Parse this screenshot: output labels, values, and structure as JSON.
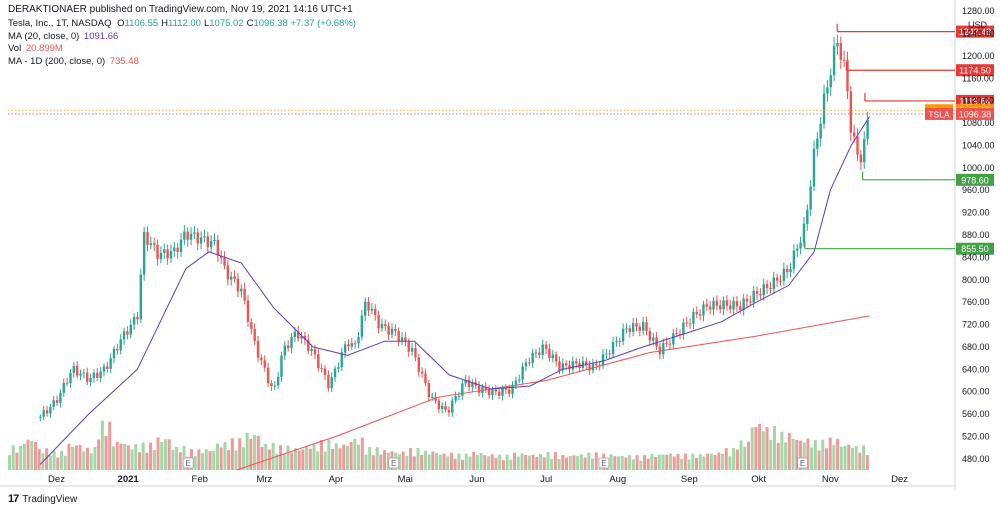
{
  "header": {
    "publish_line": "DERAKTIONAER published on TradingView.com, Nov 19, 2021 14:16 UTC+1",
    "symbol_title": "Tesla, Inc., 1T, NASDAQ",
    "ohlc": [
      {
        "label": "O",
        "value": "1106.55"
      },
      {
        "label": "H",
        "value": "1112.00"
      },
      {
        "label": "L",
        "value": "1075.02"
      },
      {
        "label": "C",
        "value": "1096.38"
      }
    ],
    "change": "+7.37 (+0.68%)",
    "ma20": {
      "label": "MA (20, close, 0)",
      "value": "1091.66"
    },
    "vol": {
      "label": "Vol",
      "value": "20.899M"
    },
    "ma200": {
      "label": "MA - 1D (200, close, 0)",
      "value": "735.48"
    }
  },
  "footer": {
    "brand": "TradingView",
    "logo": "17"
  },
  "colors": {
    "up": "#26a69a",
    "down": "#ef5350",
    "ma20": "#673ab7",
    "ma200": "#ef5350",
    "vol_up": "#a5d6a7",
    "vol_down": "#ef9a9a",
    "level_red": "#e53935",
    "level_green": "#43a047",
    "pre": "#ff9800"
  },
  "chart_data": {
    "type": "candlestick",
    "currency": "USD",
    "ylim": [
      460,
      1300
    ],
    "y_ticks": [
      1280,
      1240,
      1200,
      1160,
      1120,
      1080,
      1040,
      1000,
      960,
      920,
      880,
      840,
      800,
      760,
      720,
      680,
      640,
      600,
      560,
      520,
      480
    ],
    "x_labels": [
      "Dez",
      "2021",
      "Feb",
      "Mrz",
      "Apr",
      "Mai",
      "Jun",
      "Jul",
      "Aug",
      "Sep",
      "Okt",
      "Nov",
      "Dez"
    ],
    "price_series": [
      [
        "2020-11-24",
        555
      ],
      [
        "2020-12-01",
        584
      ],
      [
        "2020-12-08",
        641
      ],
      [
        "2020-12-15",
        622
      ],
      [
        "2020-12-22",
        640
      ],
      [
        "2020-12-29",
        694
      ],
      [
        "2021-01-05",
        735
      ],
      [
        "2021-01-08",
        880
      ],
      [
        "2021-01-14",
        845
      ],
      [
        "2021-01-21",
        850
      ],
      [
        "2021-01-26",
        883
      ],
      [
        "2021-02-02",
        872
      ],
      [
        "2021-02-08",
        863
      ],
      [
        "2021-02-12",
        816
      ],
      [
        "2021-02-19",
        781
      ],
      [
        "2021-02-25",
        682
      ],
      [
        "2021-03-05",
        597
      ],
      [
        "2021-03-09",
        673
      ],
      [
        "2021-03-15",
        707
      ],
      [
        "2021-03-22",
        670
      ],
      [
        "2021-03-29",
        611
      ],
      [
        "2021-04-06",
        691
      ],
      [
        "2021-04-09",
        677
      ],
      [
        "2021-04-14",
        762
      ],
      [
        "2021-04-20",
        718
      ],
      [
        "2021-04-27",
        704
      ],
      [
        "2021-05-04",
        673
      ],
      [
        "2021-05-12",
        589
      ],
      [
        "2021-05-19",
        563
      ],
      [
        "2021-05-27",
        619
      ],
      [
        "2021-06-02",
        605
      ],
      [
        "2021-06-09",
        598
      ],
      [
        "2021-06-16",
        604
      ],
      [
        "2021-06-23",
        656
      ],
      [
        "2021-06-30",
        680
      ],
      [
        "2021-07-07",
        644
      ],
      [
        "2021-07-15",
        650
      ],
      [
        "2021-07-22",
        643
      ],
      [
        "2021-07-29",
        677
      ],
      [
        "2021-08-05",
        714
      ],
      [
        "2021-08-12",
        717
      ],
      [
        "2021-08-19",
        673
      ],
      [
        "2021-08-26",
        701
      ],
      [
        "2021-09-02",
        732
      ],
      [
        "2021-09-09",
        754
      ],
      [
        "2021-09-16",
        755
      ],
      [
        "2021-09-23",
        753
      ],
      [
        "2021-09-30",
        775
      ],
      [
        "2021-10-07",
        793
      ],
      [
        "2021-10-14",
        818
      ],
      [
        "2021-10-21",
        894
      ],
      [
        "2021-10-25",
        1024
      ],
      [
        "2021-10-29",
        1114
      ],
      [
        "2021-11-04",
        1229
      ],
      [
        "2021-11-08",
        1162
      ],
      [
        "2021-11-10",
        1067
      ],
      [
        "2021-11-12",
        1033
      ],
      [
        "2021-11-15",
        1013
      ],
      [
        "2021-11-17",
        1089
      ],
      [
        "2021-11-18",
        1096
      ]
    ],
    "ma20_series": [
      [
        "2020-11-24",
        470
      ],
      [
        "2020-12-15",
        560
      ],
      [
        "2021-01-05",
        640
      ],
      [
        "2021-01-26",
        820
      ],
      [
        "2021-02-05",
        850
      ],
      [
        "2021-02-19",
        830
      ],
      [
        "2021-03-05",
        750
      ],
      [
        "2021-03-22",
        680
      ],
      [
        "2021-04-06",
        665
      ],
      [
        "2021-04-22",
        690
      ],
      [
        "2021-05-05",
        690
      ],
      [
        "2021-05-20",
        630
      ],
      [
        "2021-06-07",
        605
      ],
      [
        "2021-06-24",
        610
      ],
      [
        "2021-07-08",
        640
      ],
      [
        "2021-07-26",
        655
      ],
      [
        "2021-08-12",
        680
      ],
      [
        "2021-08-31",
        705
      ],
      [
        "2021-09-15",
        725
      ],
      [
        "2021-09-30",
        760
      ],
      [
        "2021-10-14",
        790
      ],
      [
        "2021-10-25",
        850
      ],
      [
        "2021-11-01",
        960
      ],
      [
        "2021-11-10",
        1040
      ],
      [
        "2021-11-18",
        1091.66
      ]
    ],
    "ma200_series": [
      [
        "2021-02-17",
        460
      ],
      [
        "2021-04-01",
        520
      ],
      [
        "2021-05-15",
        590
      ],
      [
        "2021-07-01",
        620
      ],
      [
        "2021-08-15",
        670
      ],
      [
        "2021-10-01",
        700
      ],
      [
        "2021-11-18",
        735.48
      ]
    ],
    "volume": {
      "note": "volume pane histogram (approximate relative heights 0–1)",
      "values": [
        0.45,
        0.6,
        0.4,
        0.35,
        0.5,
        0.42,
        0.9,
        0.55,
        0.48,
        0.5,
        0.62,
        0.44,
        0.38,
        0.4,
        0.52,
        0.58,
        0.7,
        0.5,
        0.45,
        0.42,
        0.48,
        0.55,
        0.5,
        0.6,
        0.42,
        0.38,
        0.35,
        0.4,
        0.36,
        0.32,
        0.3,
        0.34,
        0.3,
        0.28,
        0.32,
        0.3,
        0.33,
        0.28,
        0.3,
        0.32,
        0.3,
        0.28,
        0.27,
        0.3,
        0.32,
        0.3,
        0.3,
        0.33,
        0.4,
        0.55,
        0.9,
        0.8,
        0.7,
        0.6,
        0.55,
        0.6,
        0.5,
        0.45
      ]
    },
    "levels": [
      {
        "value": 1243.49,
        "label": "1243.49",
        "color": "red",
        "from": "2021-11-04"
      },
      {
        "value": 1174.5,
        "label": "1174.50",
        "color": "red",
        "from": "2021-11-08"
      },
      {
        "value": 1119.64,
        "label": "1119.64",
        "color": "red",
        "from": "2021-11-16"
      },
      {
        "value": 978.6,
        "label": "978.60",
        "color": "green",
        "from": "2021-11-15"
      },
      {
        "value": 855.5,
        "label": "855.50",
        "color": "green",
        "from": "2021-10-21"
      }
    ],
    "price_tags": [
      {
        "name": "Pre",
        "value": 1103.0,
        "label": "1103.00"
      },
      {
        "name": "TSLA",
        "value": 1096.38,
        "label": "1096.38"
      }
    ],
    "earnings_markers": [
      "2021-01-27",
      "2021-04-26",
      "2021-07-26",
      "2021-10-20"
    ]
  }
}
